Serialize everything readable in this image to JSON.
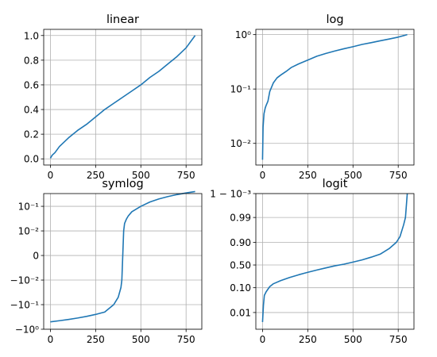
{
  "chart_data": [
    {
      "type": "line",
      "title": "linear",
      "yscale": "linear",
      "xlim": [
        -37,
        837
      ],
      "ylim": [
        -0.05,
        1.05
      ],
      "grid": true,
      "color": "#1f77b4",
      "xticks": [
        {
          "v": 0,
          "label": "0"
        },
        {
          "v": 250,
          "label": "250"
        },
        {
          "v": 500,
          "label": "500"
        },
        {
          "v": 750,
          "label": "750"
        }
      ],
      "yticks": [
        {
          "v": 0.0,
          "label": "0.0"
        },
        {
          "v": 0.2,
          "label": "0.2"
        },
        {
          "v": 0.4,
          "label": "0.4"
        },
        {
          "v": 0.6,
          "label": "0.6"
        },
        {
          "v": 0.8,
          "label": "0.8"
        },
        {
          "v": 1.0,
          "label": "1.0"
        }
      ],
      "x": [
        0,
        10,
        25,
        50,
        100,
        150,
        200,
        250,
        300,
        350,
        400,
        450,
        500,
        550,
        600,
        650,
        700,
        750,
        800
      ],
      "y": [
        0.005,
        0.03,
        0.05,
        0.1,
        0.17,
        0.23,
        0.28,
        0.34,
        0.4,
        0.45,
        0.5,
        0.55,
        0.6,
        0.66,
        0.71,
        0.77,
        0.83,
        0.9,
        1.0
      ]
    },
    {
      "type": "line",
      "title": "log",
      "yscale": "log",
      "xlim": [
        -37,
        837
      ],
      "ylim": [
        0.004,
        1.25
      ],
      "grid": true,
      "color": "#1f77b4",
      "xticks": [
        {
          "v": 0,
          "label": "0"
        },
        {
          "v": 250,
          "label": "250"
        },
        {
          "v": 500,
          "label": "500"
        },
        {
          "v": 750,
          "label": "750"
        }
      ],
      "yticks": [
        {
          "v": 0.01,
          "label": "10⁻²"
        },
        {
          "v": 0.1,
          "label": "10⁻¹"
        },
        {
          "v": 1,
          "label": "10⁰"
        }
      ],
      "x": [
        0,
        3,
        8,
        15,
        20,
        30,
        40,
        60,
        80,
        100,
        130,
        160,
        200,
        250,
        300,
        350,
        400,
        450,
        500,
        550,
        600,
        650,
        700,
        750,
        800
      ],
      "y": [
        0.005,
        0.02,
        0.035,
        0.045,
        0.05,
        0.06,
        0.09,
        0.13,
        0.16,
        0.18,
        0.21,
        0.25,
        0.29,
        0.34,
        0.4,
        0.45,
        0.5,
        0.55,
        0.6,
        0.66,
        0.71,
        0.77,
        0.83,
        0.9,
        1.0
      ]
    },
    {
      "type": "line",
      "title": "symlog",
      "yscale": "symlog",
      "linthresh": 0.01,
      "xlim": [
        -37,
        837
      ],
      "ylim": [
        -1,
        0.33
      ],
      "grid": true,
      "color": "#1f77b4",
      "xticks": [
        {
          "v": 0,
          "label": "0"
        },
        {
          "v": 250,
          "label": "250"
        },
        {
          "v": 500,
          "label": "500"
        },
        {
          "v": 750,
          "label": "750"
        }
      ],
      "yticks": [
        {
          "v": -1,
          "label": "−10⁰"
        },
        {
          "v": -0.1,
          "label": "−10⁻¹"
        },
        {
          "v": -0.01,
          "label": "−10⁻²"
        },
        {
          "v": 0,
          "label": "0"
        },
        {
          "v": 0.01,
          "label": "10⁻²"
        },
        {
          "v": 0.1,
          "label": "10⁻¹"
        }
      ],
      "x": [
        0,
        50,
        100,
        150,
        200,
        250,
        300,
        350,
        375,
        390,
        395,
        400,
        405,
        410,
        420,
        430,
        450,
        500,
        550,
        600,
        650,
        700,
        750,
        800
      ],
      "y": [
        -0.5,
        -0.45,
        -0.4,
        -0.35,
        -0.3,
        -0.25,
        -0.2,
        -0.1,
        -0.05,
        -0.02,
        -0.01,
        0,
        0.01,
        0.02,
        0.03,
        0.04,
        0.06,
        0.1,
        0.15,
        0.2,
        0.25,
        0.3,
        0.35,
        0.4
      ]
    },
    {
      "type": "line",
      "title": "logit",
      "yscale": "logit",
      "xlim": [
        -37,
        837
      ],
      "ylim": [
        0.002,
        0.999
      ],
      "grid": true,
      "color": "#1f77b4",
      "xticks": [
        {
          "v": 0,
          "label": "0"
        },
        {
          "v": 250,
          "label": "250"
        },
        {
          "v": 500,
          "label": "500"
        },
        {
          "v": 750,
          "label": "750"
        }
      ],
      "yticks": [
        {
          "v": 0.01,
          "label": "0.01"
        },
        {
          "v": 0.1,
          "label": "0.10"
        },
        {
          "v": 0.5,
          "label": "0.50"
        },
        {
          "v": 0.9,
          "label": "0.90"
        },
        {
          "v": 0.99,
          "label": "0.99"
        },
        {
          "v": 0.999,
          "label": "1 − 10⁻³"
        }
      ],
      "x": [
        0,
        5,
        10,
        20,
        40,
        60,
        100,
        150,
        200,
        250,
        300,
        350,
        400,
        450,
        500,
        550,
        600,
        650,
        700,
        740,
        760,
        780,
        790,
        800
      ],
      "y": [
        0.004,
        0.02,
        0.05,
        0.07,
        0.11,
        0.14,
        0.18,
        0.23,
        0.28,
        0.33,
        0.38,
        0.43,
        0.48,
        0.52,
        0.57,
        0.62,
        0.68,
        0.74,
        0.83,
        0.9,
        0.94,
        0.98,
        0.99,
        0.999
      ]
    }
  ]
}
